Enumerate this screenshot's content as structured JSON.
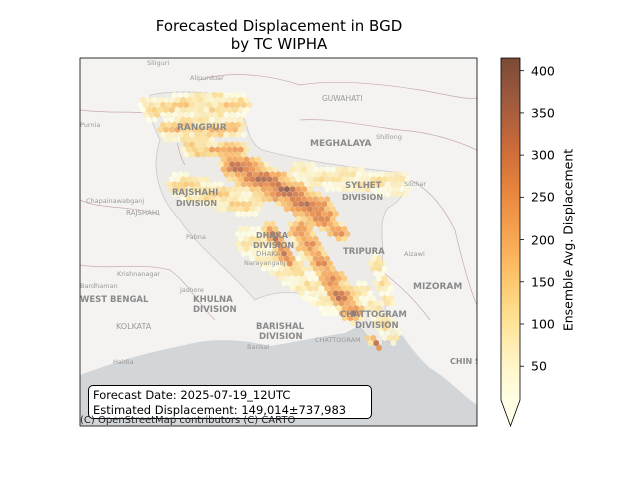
{
  "title": {
    "line1": "Forecasted Displacement in BGD",
    "line2": "by TC WIPHA"
  },
  "annotation": {
    "forecast_date": "Forecast Date: 2025-07-19_12UTC",
    "estimated_displacement": "Estimated Displacement: 149,014±737,983"
  },
  "attribution": "(C) OpenStreetMap contributors (C) CARTO",
  "colorbar": {
    "label": "Ensemble Avg. Displacement",
    "ticks": [
      50,
      100,
      150,
      200,
      250,
      300,
      350,
      400
    ],
    "min": 10,
    "max": 415,
    "extend": "min",
    "colormap": [
      "#ffffe5",
      "#fff2c0",
      "#fedf8e",
      "#fdc067",
      "#f5a04e",
      "#e5823d",
      "#c7693a",
      "#9e5a3e",
      "#7a4a36"
    ]
  },
  "basemap_labels": [
    {
      "text": "Siliguri",
      "kind": "city"
    },
    {
      "text": "Alipurduar",
      "kind": "city"
    },
    {
      "text": "GUWAHATI",
      "kind": "city"
    },
    {
      "text": "MEGHALAYA",
      "kind": "region"
    },
    {
      "text": "Shillong",
      "kind": "city"
    },
    {
      "text": "RANGPUR",
      "kind": "region"
    },
    {
      "text": "Purnia",
      "kind": "city"
    },
    {
      "text": "SYLHET",
      "kind": "region"
    },
    {
      "text": "DIVISION",
      "kind": "region"
    },
    {
      "text": "Silchar",
      "kind": "city"
    },
    {
      "text": "Chapainawabganj",
      "kind": "city"
    },
    {
      "text": "RAJSHAHI",
      "kind": "region"
    },
    {
      "text": "DIVISION",
      "kind": "region"
    },
    {
      "text": "RAJSHAHI",
      "kind": "city"
    },
    {
      "text": "Pabna",
      "kind": "city"
    },
    {
      "text": "DHAKA",
      "kind": "region"
    },
    {
      "text": "DIVISION",
      "kind": "region"
    },
    {
      "text": "DHAKA",
      "kind": "city"
    },
    {
      "text": "TRIPURA",
      "kind": "region"
    },
    {
      "text": "Aizawl",
      "kind": "city"
    },
    {
      "text": "Narayanganj",
      "kind": "city"
    },
    {
      "text": "Krishnanagar",
      "kind": "city"
    },
    {
      "text": "Bardhaman",
      "kind": "city"
    },
    {
      "text": "Jashore",
      "kind": "city"
    },
    {
      "text": "WEST BENGAL",
      "kind": "region"
    },
    {
      "text": "KHULNA",
      "kind": "region"
    },
    {
      "text": "DIVISION",
      "kind": "region"
    },
    {
      "text": "MIZORAM",
      "kind": "region"
    },
    {
      "text": "KOLKATA",
      "kind": "city"
    },
    {
      "text": "BARISHAL",
      "kind": "region"
    },
    {
      "text": "DIVISION",
      "kind": "region"
    },
    {
      "text": "Barisal",
      "kind": "city"
    },
    {
      "text": "CHATTOGRAM",
      "kind": "region"
    },
    {
      "text": "DIVISION",
      "kind": "region"
    },
    {
      "text": "CHATTOGRAM",
      "kind": "city"
    },
    {
      "text": "Haldia",
      "kind": "city"
    },
    {
      "text": "CHIN S",
      "kind": "region"
    }
  ]
}
